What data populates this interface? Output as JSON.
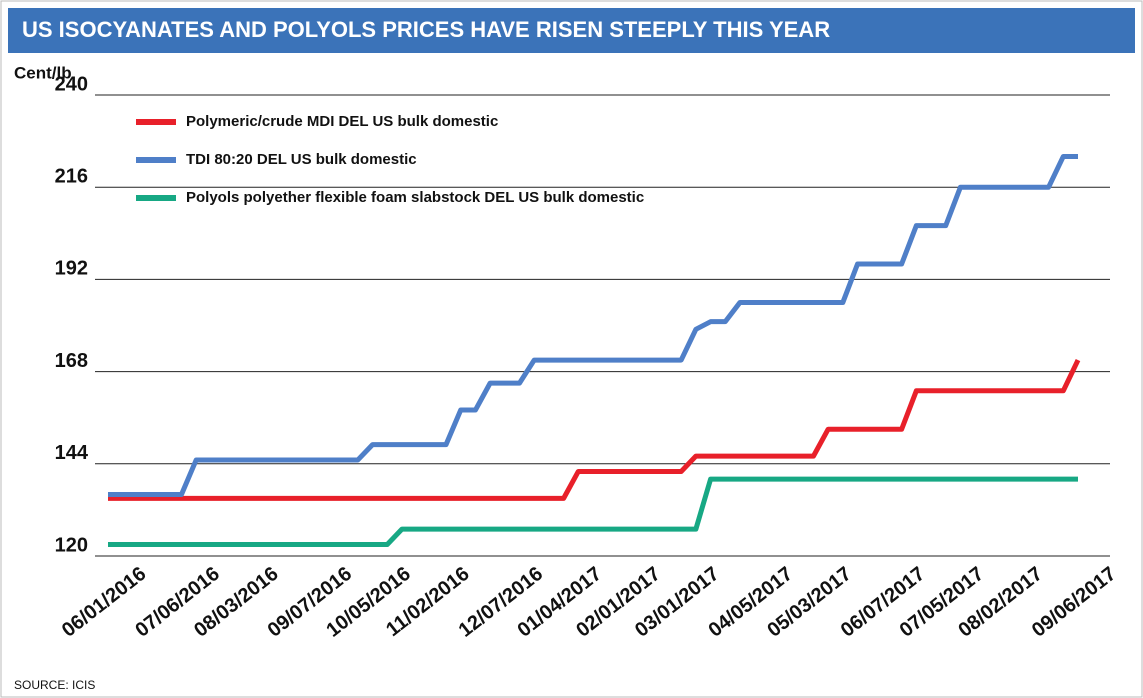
{
  "chart_data": {
    "type": "line",
    "title": "US ISOCYANATES AND POLYOLS PRICES HAVE RISEN STEEPLY THIS YEAR",
    "y_label": "Cent/lb",
    "source": "SOURCE: ICIS",
    "ylim": [
      120,
      240
    ],
    "yticks": [
      120,
      144,
      168,
      192,
      216,
      240
    ],
    "xlim": [
      "06/01/2016",
      "09/06/2017"
    ],
    "xticks": [
      "06/01/2016",
      "07/06/2016",
      "08/03/2016",
      "09/07/2016",
      "10/05/2016",
      "11/02/2016",
      "12/07/2016",
      "01/04/2017",
      "02/01/2017",
      "03/01/2017",
      "04/05/2017",
      "05/03/2017",
      "06/07/2017",
      "07/05/2017",
      "08/02/2017",
      "09/06/2017"
    ],
    "grid": true,
    "legend": "top-left",
    "series": [
      {
        "name": "Polymeric/crude MDI DEL US bulk domestic",
        "color": "#e8202a",
        "x": [
          "06/01/2016",
          "01/04/2017",
          "01/11/2017",
          "03/01/2017",
          "03/08/2017",
          "05/03/2017",
          "05/10/2017",
          "06/14/2017",
          "06/21/2017",
          "08/30/2017",
          "09/06/2017"
        ],
        "values": [
          135,
          135,
          142,
          142,
          146,
          146,
          153,
          153,
          163,
          163,
          171
        ]
      },
      {
        "name": "TDI 80:20 DEL US bulk domestic",
        "color": "#4f7fc8",
        "x": [
          "06/01/2016",
          "07/06/2016",
          "07/13/2016",
          "09/28/2016",
          "10/05/2016",
          "11/09/2016",
          "11/16/2016",
          "11/23/2016",
          "11/30/2016",
          "12/14/2016",
          "12/21/2016",
          "03/01/2017",
          "03/08/2017",
          "03/15/2017",
          "03/22/2017",
          "03/29/2017",
          "05/17/2017",
          "05/24/2017",
          "06/14/2017",
          "06/21/2017",
          "07/05/2017",
          "07/12/2017",
          "08/23/2017",
          "08/30/2017",
          "09/06/2017"
        ],
        "values": [
          136,
          136,
          145,
          145,
          149,
          149,
          158,
          158,
          165,
          165,
          171,
          171,
          179,
          181,
          181,
          186,
          186,
          196,
          196,
          206,
          206,
          216,
          216,
          224,
          224
        ]
      },
      {
        "name": "Polyols polyether flexible foam slabstock DEL US bulk domestic",
        "color": "#17a884",
        "x": [
          "06/01/2016",
          "10/12/2016",
          "10/19/2016",
          "03/08/2017",
          "03/15/2017",
          "09/06/2017"
        ],
        "values": [
          123,
          123,
          127,
          127,
          140,
          140
        ]
      }
    ]
  }
}
